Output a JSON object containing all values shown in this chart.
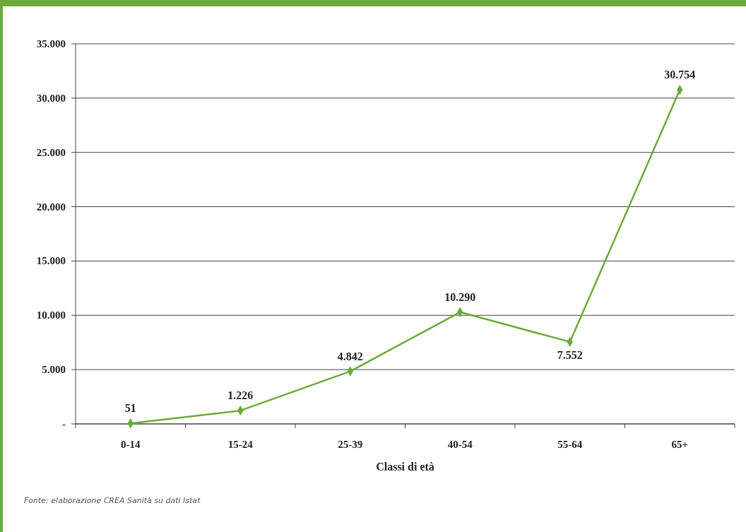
{
  "chart_data": {
    "type": "line",
    "xlabel": "Classi di età",
    "categories": [
      "0-14",
      "15-24",
      "25-39",
      "40-54",
      "55-64",
      "65+"
    ],
    "series": [
      {
        "color": "#6aaa3a",
        "values": [
          51,
          1226,
          4842,
          10290,
          7552,
          30754
        ],
        "value_labels": [
          "51",
          "1.226",
          "4.842",
          "10.290",
          "7.552",
          "30.754"
        ]
      }
    ],
    "ylim": [
      0,
      35000
    ],
    "yticks": [
      {
        "value": 0,
        "label": "-"
      },
      {
        "value": 5000,
        "label": "5.000"
      },
      {
        "value": 10000,
        "label": "10.000"
      },
      {
        "value": 15000,
        "label": "15.000"
      },
      {
        "value": 20000,
        "label": "20.000"
      },
      {
        "value": 25000,
        "label": "25.000"
      },
      {
        "value": 30000,
        "label": "30.000"
      },
      {
        "value": 35000,
        "label": "35.000"
      }
    ],
    "grid": "y",
    "marker": "diamond",
    "line_style": "solid",
    "annotations": [
      "Fonte: elaborazione CREA Sanità su dati Istat"
    ]
  }
}
